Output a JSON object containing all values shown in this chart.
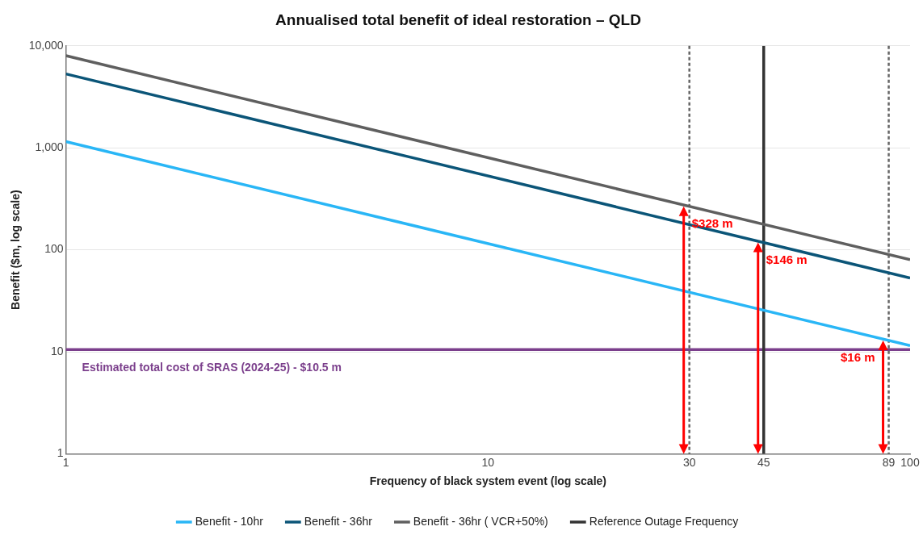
{
  "chart_data": {
    "type": "line",
    "title": "Annualised total benefit of ideal restoration – QLD",
    "xlabel": "Frequency of black system event (log scale)",
    "ylabel": "Benefit ($m, log scale)",
    "log": "xy",
    "xlim": [
      1,
      100
    ],
    "ylim": [
      1,
      10000
    ],
    "xticks": [
      1,
      10,
      30,
      45,
      89,
      100
    ],
    "yticks": [
      1,
      10,
      100,
      {
        "value": 1000,
        "label": "1,000"
      },
      {
        "value": 10000,
        "label": "10,000"
      }
    ],
    "grid": "y",
    "legend": "bottom",
    "marker": "none",
    "series": [
      {
        "name": "Benefit - 10hr",
        "color": "#29b6f6",
        "x": [
          1,
          100
        ],
        "values": [
          1150,
          11.5
        ]
      },
      {
        "name": "Benefit - 36hr",
        "color": "#0b5578",
        "x": [
          1,
          100
        ],
        "values": [
          5300,
          53
        ]
      },
      {
        "name": "Benefit - 36hr ( VCR+50%)",
        "color": "#5f5f5f",
        "x": [
          1,
          100
        ],
        "values": [
          8000,
          80
        ]
      },
      {
        "name": "Reference Outage Frequency",
        "color": "#333333",
        "x": [
          45,
          45
        ],
        "values": [
          1,
          10000
        ]
      }
    ],
    "ref_lines": [
      {
        "axis": "y",
        "value": 10.5,
        "label": "Estimated total cost of SRAS (2024-25) - $10.5 m",
        "color": "#7b3f8c",
        "line_style": "solid"
      },
      {
        "axis": "x",
        "value": 30,
        "color": "#666666",
        "line_style": "dashed"
      },
      {
        "axis": "x",
        "value": 89,
        "color": "#666666",
        "line_style": "dashed"
      }
    ],
    "annotations": [
      {
        "text": "$328 m",
        "x": 30,
        "y": 267
      },
      {
        "text": "$146 m",
        "x": 45,
        "y": 118
      },
      {
        "text": "$16 m",
        "x": 89,
        "y": 12.9
      }
    ]
  }
}
